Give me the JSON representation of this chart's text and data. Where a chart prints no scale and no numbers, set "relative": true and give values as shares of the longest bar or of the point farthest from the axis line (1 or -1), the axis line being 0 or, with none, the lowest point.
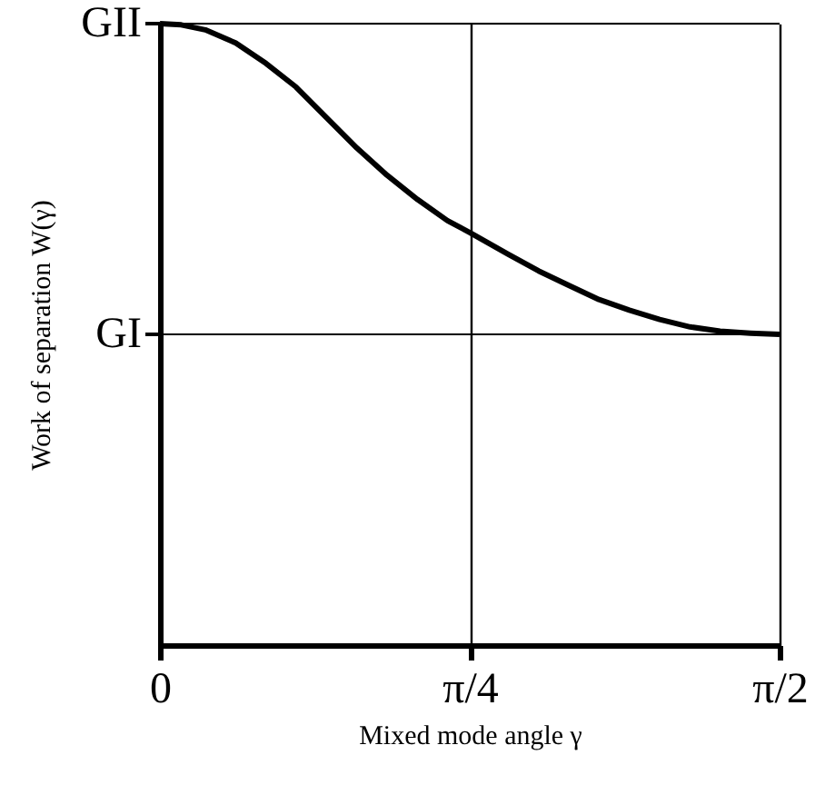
{
  "chart_data": {
    "type": "line",
    "xlabel": "Mixed mode angle γ",
    "ylabel": "Work of separation W(γ)",
    "relative": true,
    "x": [
      0,
      0.054,
      0.115,
      0.192,
      0.269,
      0.345,
      0.422,
      0.499,
      0.576,
      0.653,
      0.729,
      0.785,
      0.883,
      0.96,
      1.036,
      1.113,
      1.19,
      1.267,
      1.344,
      1.42,
      1.497,
      1.5708
    ],
    "series": [
      {
        "color": "#000000",
        "values": [
          1,
          0.998,
          0.99,
          0.969,
          0.936,
          0.898,
          0.849,
          0.8,
          0.756,
          0.717,
          0.683,
          0.664,
          0.629,
          0.602,
          0.579,
          0.556,
          0.539,
          0.524,
          0.512,
          0.505,
          0.502,
          0.5
        ]
      }
    ],
    "xlim": [
      0,
      1.5708
    ],
    "xticks": [
      0,
      {
        "value": 0.7854,
        "label": "π/4"
      },
      {
        "value": 1.5708,
        "label": "π/2"
      }
    ],
    "ref_lines": [
      {
        "axis": "y",
        "value": 1,
        "label": "GII",
        "color": "#000000"
      },
      {
        "axis": "y",
        "value": 0.5,
        "label": "GI",
        "color": "#000000"
      }
    ],
    "grid": "x",
    "marker": "none",
    "line_style": "solid"
  }
}
